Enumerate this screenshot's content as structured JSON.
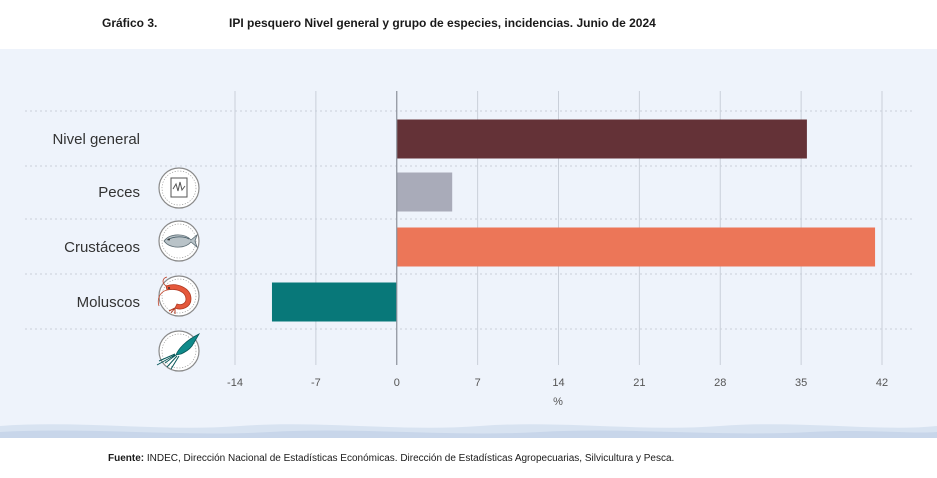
{
  "header": {
    "figure_label": "Gráfico 3.",
    "title": "IPI pesquero Nivel general y grupo de especies, incidencias. Junio de 2024"
  },
  "footer": {
    "source_label": "Fuente:",
    "source_text": "INDEC, Dirección Nacional de Estadísticas Económicas. Dirección de Estadísticas Agropecuarias, Silvicultura y Pesca."
  },
  "colors": {
    "panel_bg": "#eef3fb",
    "nivel_general": "#643237",
    "peces": "#a9abb9",
    "crustaceos": "#ec7658",
    "moluscos": "#087879",
    "grid": "#c9cfd9",
    "axis_text": "#555555",
    "label_text": "#333333"
  },
  "chart_data": {
    "type": "bar",
    "orientation": "horizontal",
    "categories": [
      "Nivel general",
      "Peces",
      "Crustáceos",
      "Moluscos"
    ],
    "icons": [
      "monitor-chart-icon",
      "fish-icon",
      "shrimp-icon",
      "squid-icon"
    ],
    "values": [
      35.5,
      4.8,
      41.4,
      -10.8
    ],
    "bar_colors": [
      "#643237",
      "#a9abb9",
      "#ec7658",
      "#087879"
    ],
    "xlim": [
      -14,
      42
    ],
    "xticks": [
      -14,
      -7,
      0,
      7,
      14,
      21,
      28,
      35,
      42
    ],
    "xtick_labels": [
      "-14",
      "-7",
      "0",
      "7",
      "14",
      "21",
      "28",
      "35",
      "42"
    ],
    "xlabel": "%",
    "grid": true
  }
}
